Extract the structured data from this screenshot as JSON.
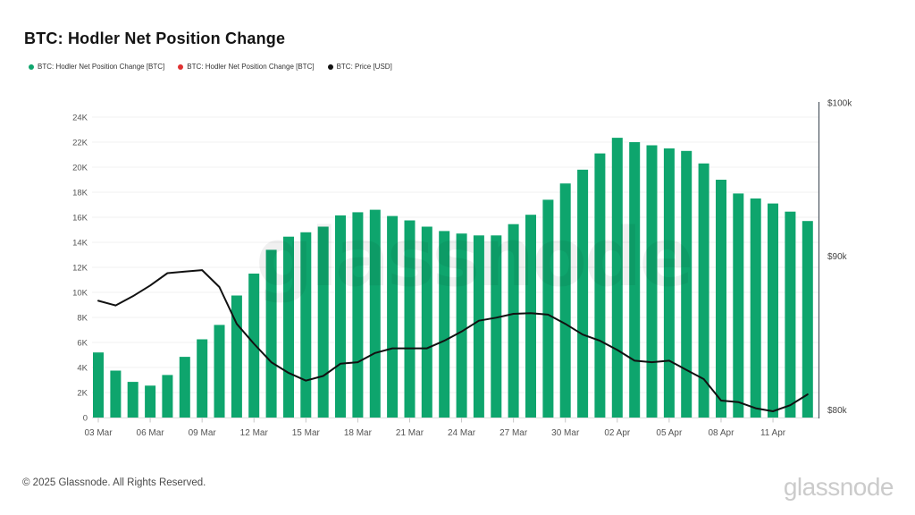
{
  "header": {
    "title": "BTC: Hodler Net Position Change"
  },
  "legend": {
    "items": [
      {
        "label": "BTC: Hodler Net Position Change [BTC]",
        "color": "#0ea56d"
      },
      {
        "label": "BTC: Hodler Net Position Change [BTC]",
        "color": "#e03131"
      },
      {
        "label": "BTC: Price [USD]",
        "color": "#111111"
      }
    ]
  },
  "watermark": {
    "text": "glassnode"
  },
  "footer": {
    "copyright": "© 2025 Glassnode. All Rights Reserved.",
    "brand": "glassnode"
  },
  "chart_data": {
    "type": "bar",
    "title": "BTC: Hodler Net Position Change",
    "grid": true,
    "legend_position": "top-left",
    "dates": [
      "03 Mar",
      "04 Mar",
      "05 Mar",
      "06 Mar",
      "07 Mar",
      "08 Mar",
      "09 Mar",
      "10 Mar",
      "11 Mar",
      "12 Mar",
      "13 Mar",
      "14 Mar",
      "15 Mar",
      "16 Mar",
      "17 Mar",
      "18 Mar",
      "19 Mar",
      "20 Mar",
      "21 Mar",
      "22 Mar",
      "23 Mar",
      "24 Mar",
      "25 Mar",
      "26 Mar",
      "27 Mar",
      "28 Mar",
      "29 Mar",
      "30 Mar",
      "31 Mar",
      "01 Apr",
      "02 Apr",
      "03 Apr",
      "04 Apr",
      "05 Apr",
      "06 Apr",
      "07 Apr",
      "08 Apr",
      "09 Apr",
      "10 Apr",
      "11 Apr",
      "12 Apr",
      "13 Apr"
    ],
    "series": [
      {
        "name": "BTC: Hodler Net Position Change [BTC]",
        "type": "bar",
        "axis": "left",
        "color": "#0ea56d",
        "values": [
          5200,
          3750,
          2850,
          2550,
          3400,
          4850,
          6250,
          7400,
          9750,
          11500,
          13400,
          14450,
          14800,
          15250,
          16150,
          16400,
          16600,
          16100,
          15750,
          15250,
          14900,
          14700,
          14550,
          14550,
          15450,
          16200,
          17400,
          18700,
          19800,
          21100,
          22350,
          22000,
          21750,
          21500,
          21300,
          20300,
          19000,
          17900,
          17500,
          17100,
          16450,
          15700
        ]
      },
      {
        "name": "BTC: Price [USD]",
        "type": "line",
        "axis": "right",
        "color": "#111111",
        "values": [
          87100,
          86800,
          87400,
          88100,
          88900,
          89000,
          89100,
          88000,
          85600,
          84300,
          83100,
          82400,
          81900,
          82200,
          83000,
          83100,
          83700,
          84000,
          84000,
          84000,
          84500,
          85100,
          85800,
          86000,
          86250,
          86300,
          86200,
          85600,
          84900,
          84500,
          83900,
          83200,
          83100,
          83200,
          82600,
          82000,
          80600,
          80500,
          80100,
          79900,
          80300,
          81000
        ]
      }
    ],
    "left_axis": {
      "min": 0,
      "max": 24000,
      "ticks": [
        {
          "label": "0",
          "value": 0
        },
        {
          "label": "2K",
          "value": 2000
        },
        {
          "label": "4K",
          "value": 4000
        },
        {
          "label": "6K",
          "value": 6000
        },
        {
          "label": "8K",
          "value": 8000
        },
        {
          "label": "10K",
          "value": 10000
        },
        {
          "label": "12K",
          "value": 12000
        },
        {
          "label": "14K",
          "value": 14000
        },
        {
          "label": "16K",
          "value": 16000
        },
        {
          "label": "18K",
          "value": 18000
        },
        {
          "label": "20K",
          "value": 20000
        },
        {
          "label": "22K",
          "value": 22000
        },
        {
          "label": "24K",
          "value": 24000
        }
      ]
    },
    "right_axis": {
      "min": 80000,
      "max": 100000,
      "ticks": [
        {
          "label": "$80k",
          "value": 80000
        },
        {
          "label": "$90k",
          "value": 90000
        },
        {
          "label": "$100k",
          "value": 100000
        }
      ]
    },
    "x_ticks": [
      {
        "index": 0,
        "label": "03 Mar"
      },
      {
        "index": 3,
        "label": "06 Mar"
      },
      {
        "index": 6,
        "label": "09 Mar"
      },
      {
        "index": 9,
        "label": "12 Mar"
      },
      {
        "index": 12,
        "label": "15 Mar"
      },
      {
        "index": 15,
        "label": "18 Mar"
      },
      {
        "index": 18,
        "label": "21 Mar"
      },
      {
        "index": 21,
        "label": "24 Mar"
      },
      {
        "index": 24,
        "label": "27 Mar"
      },
      {
        "index": 27,
        "label": "30 Mar"
      },
      {
        "index": 30,
        "label": "02 Apr"
      },
      {
        "index": 33,
        "label": "05 Apr"
      },
      {
        "index": 36,
        "label": "08 Apr"
      },
      {
        "index": 39,
        "label": "11 Apr"
      }
    ]
  }
}
